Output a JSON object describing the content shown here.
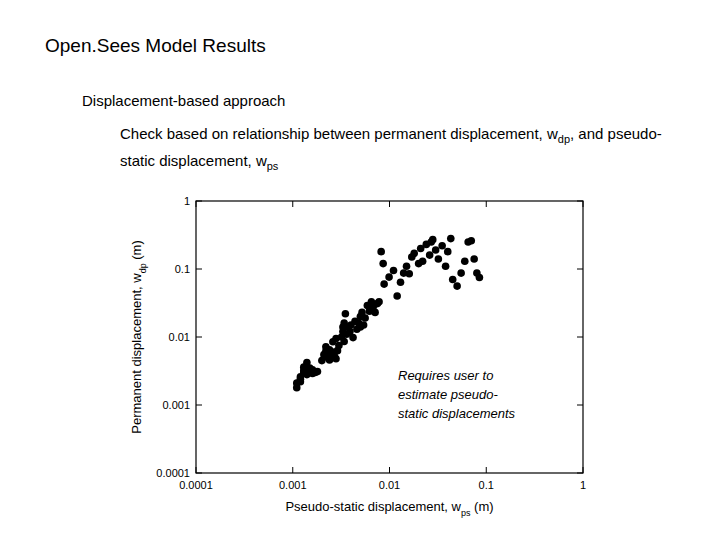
{
  "slide": {
    "title": "Open.Sees Model Results",
    "heading": "Displacement-based approach",
    "text": [
      "Check based on relationship between permanent displacement, w",
      "dp",
      ", and pseudo-static displacement, w",
      "ps"
    ]
  },
  "chart_data": {
    "type": "scatter",
    "xlabel": [
      "Pseudo-static displacement, w",
      "ps",
      " (m)"
    ],
    "ylabel": [
      "Permanent displacement, w",
      "dp",
      " (m)"
    ],
    "annotation": [
      "Requires user to",
      "estimate pseudo-",
      "static displacements"
    ],
    "log": true,
    "grid": false,
    "color": "#000000",
    "marker": "circle",
    "xlim": [
      0.0001,
      1
    ],
    "ylim": [
      0.0001,
      1
    ],
    "xticks": [
      0.0001,
      0.001,
      0.01,
      0.1,
      1
    ],
    "yticks": [
      0.0001,
      0.001,
      0.01,
      0.1,
      1
    ],
    "x": [
      0.0011,
      0.0011,
      0.0012,
      0.0012,
      0.0013,
      0.0013,
      0.0014,
      0.0014,
      0.0015,
      0.0016,
      0.0017,
      0.0012,
      0.0013,
      0.0014,
      0.0016,
      0.0018,
      0.002,
      0.0021,
      0.0022,
      0.0023,
      0.0024,
      0.0025,
      0.0026,
      0.0027,
      0.0028,
      0.0029,
      0.003,
      0.0022,
      0.0026,
      0.0028,
      0.0024,
      0.0032,
      0.0033,
      0.0034,
      0.0036,
      0.0037,
      0.0039,
      0.004,
      0.0042,
      0.0044,
      0.0046,
      0.0035,
      0.0034,
      0.0033,
      0.0048,
      0.005,
      0.0052,
      0.0054,
      0.0056,
      0.0059,
      0.0062,
      0.0065,
      0.0068,
      0.0071,
      0.0075,
      0.0078,
      0.005,
      0.0088,
      0.0099,
      0.011,
      0.012,
      0.013,
      0.014,
      0.015,
      0.016,
      0.017,
      0.0082,
      0.0086,
      0.018,
      0.02,
      0.021,
      0.022,
      0.024,
      0.026,
      0.028,
      0.03,
      0.032,
      0.035,
      0.038,
      0.04,
      0.043,
      0.027,
      0.045,
      0.05,
      0.055,
      0.06,
      0.065,
      0.07,
      0.08,
      0.085,
      0.075
    ],
    "values": [
      0.0018,
      0.0021,
      0.0024,
      0.0026,
      0.003,
      0.0032,
      0.0028,
      0.0031,
      0.0035,
      0.0029,
      0.003,
      0.0022,
      0.0036,
      0.0042,
      0.0033,
      0.0031,
      0.0045,
      0.0055,
      0.0062,
      0.005,
      0.0065,
      0.0055,
      0.006,
      0.0052,
      0.0048,
      0.0063,
      0.0075,
      0.0072,
      0.0085,
      0.0095,
      0.0046,
      0.01,
      0.012,
      0.0086,
      0.011,
      0.014,
      0.012,
      0.015,
      0.0098,
      0.017,
      0.013,
      0.022,
      0.016,
      0.014,
      0.016,
      0.02,
      0.023,
      0.015,
      0.019,
      0.029,
      0.024,
      0.033,
      0.028,
      0.023,
      0.031,
      0.033,
      0.014,
      0.06,
      0.076,
      0.095,
      0.04,
      0.064,
      0.087,
      0.11,
      0.085,
      0.15,
      0.18,
      0.12,
      0.17,
      0.12,
      0.2,
      0.13,
      0.23,
      0.16,
      0.27,
      0.19,
      0.14,
      0.22,
      0.11,
      0.18,
      0.28,
      0.25,
      0.07,
      0.056,
      0.087,
      0.13,
      0.25,
      0.26,
      0.087,
      0.075,
      0.14
    ]
  }
}
